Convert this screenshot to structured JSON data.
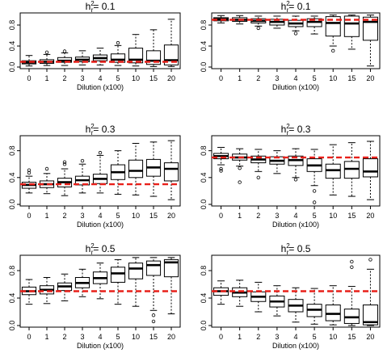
{
  "chart_data": [
    {
      "type": "box",
      "title": "h²r = 0.1",
      "title_main": "h",
      "title_sup": "2",
      "title_sub": "r",
      "title_rest": "= 0.1",
      "xlabel": "Dilution (x100)",
      "ylabel": "",
      "categories": [
        "0",
        "1",
        "2",
        "3",
        "4",
        "5",
        "10",
        "15",
        "20"
      ],
      "ylim": [
        0,
        1
      ],
      "yticks": [
        "0.0",
        "0.4",
        "0.8"
      ],
      "ytick_values": [
        0,
        0.4,
        0.8
      ],
      "reference_line": 0.1,
      "reference_color": "#e8201a",
      "boxes": [
        {
          "whislo": 0.02,
          "q1": 0.06,
          "med": 0.09,
          "q3": 0.12,
          "whishi": 0.22,
          "fliers": []
        },
        {
          "whislo": 0.03,
          "q1": 0.07,
          "med": 0.1,
          "q3": 0.14,
          "whishi": 0.24,
          "fliers": [
            0.28
          ]
        },
        {
          "whislo": 0.03,
          "q1": 0.09,
          "med": 0.12,
          "q3": 0.18,
          "whishi": 0.27,
          "fliers": [
            0.3
          ]
        },
        {
          "whislo": 0.04,
          "q1": 0.1,
          "med": 0.14,
          "q3": 0.19,
          "whishi": 0.31,
          "fliers": []
        },
        {
          "whislo": 0.04,
          "q1": 0.12,
          "med": 0.17,
          "q3": 0.23,
          "whishi": 0.36,
          "fliers": []
        },
        {
          "whislo": 0.03,
          "q1": 0.09,
          "med": 0.14,
          "q3": 0.25,
          "whishi": 0.41,
          "fliers": [
            0.46
          ]
        },
        {
          "whislo": 0.02,
          "q1": 0.08,
          "med": 0.14,
          "q3": 0.36,
          "whishi": 0.62,
          "fliers": []
        },
        {
          "whislo": 0.01,
          "q1": 0.05,
          "med": 0.12,
          "q3": 0.31,
          "whishi": 0.71,
          "fliers": []
        },
        {
          "whislo": 0.01,
          "q1": 0.04,
          "med": 0.13,
          "q3": 0.42,
          "whishi": 0.91,
          "fliers": []
        }
      ]
    },
    {
      "type": "box",
      "title": "h²r = 0.1",
      "title_main": "h",
      "title_sup": "2",
      "title_sub": "r",
      "title_rest": "= 0.1",
      "xlabel": "Dilution (x100)",
      "ylabel": "",
      "categories": [
        "0",
        "1",
        "2",
        "3",
        "4",
        "5",
        "10",
        "15",
        "20"
      ],
      "ylim": [
        0,
        1
      ],
      "yticks": [
        "0.0",
        "0.4",
        "0.8"
      ],
      "ytick_values": [
        0,
        0.4,
        0.8
      ],
      "reference_line": 0.9,
      "reference_color": "#e8201a",
      "boxes": [
        {
          "whislo": 0.84,
          "q1": 0.88,
          "med": 0.91,
          "q3": 0.94,
          "whishi": 0.98,
          "fliers": []
        },
        {
          "whislo": 0.82,
          "q1": 0.87,
          "med": 0.9,
          "q3": 0.94,
          "whishi": 0.98,
          "fliers": []
        },
        {
          "whislo": 0.78,
          "q1": 0.84,
          "med": 0.88,
          "q3": 0.92,
          "whishi": 0.97,
          "fliers": [
            0.74
          ]
        },
        {
          "whislo": 0.74,
          "q1": 0.8,
          "med": 0.86,
          "q3": 0.91,
          "whishi": 0.97,
          "fliers": []
        },
        {
          "whislo": 0.69,
          "q1": 0.77,
          "med": 0.83,
          "q3": 0.89,
          "whishi": 0.97,
          "fliers": [
            0.64
          ]
        },
        {
          "whislo": 0.63,
          "q1": 0.77,
          "med": 0.86,
          "q3": 0.92,
          "whishi": 0.97,
          "fliers": []
        },
        {
          "whislo": 0.4,
          "q1": 0.59,
          "med": 0.84,
          "q3": 0.96,
          "whishi": 0.99,
          "fliers": [
            0.31
          ]
        },
        {
          "whislo": 0.34,
          "q1": 0.58,
          "med": 0.83,
          "q3": 0.97,
          "whishi": 0.99,
          "fliers": []
        },
        {
          "whislo": 0.02,
          "q1": 0.51,
          "med": 0.86,
          "q3": 0.95,
          "whishi": 0.99,
          "fliers": []
        }
      ]
    },
    {
      "type": "box",
      "title": "h²r = 0.3",
      "title_main": "h",
      "title_sup": "2",
      "title_sub": "r",
      "title_rest": "= 0.3",
      "xlabel": "Dilution (x100)",
      "ylabel": "",
      "categories": [
        "0",
        "1",
        "2",
        "3",
        "4",
        "5",
        "10",
        "15",
        "20"
      ],
      "ylim": [
        0,
        1
      ],
      "yticks": [
        "0.0",
        "0.4",
        "0.8"
      ],
      "ytick_values": [
        0,
        0.4,
        0.8
      ],
      "reference_line": 0.3,
      "reference_color": "#e8201a",
      "boxes": [
        {
          "whislo": 0.17,
          "q1": 0.24,
          "med": 0.29,
          "q3": 0.33,
          "whishi": 0.42,
          "fliers": [
            0.47,
            0.51
          ]
        },
        {
          "whislo": 0.16,
          "q1": 0.25,
          "med": 0.3,
          "q3": 0.35,
          "whishi": 0.46,
          "fliers": [
            0.53
          ]
        },
        {
          "whislo": 0.13,
          "q1": 0.26,
          "med": 0.33,
          "q3": 0.39,
          "whishi": 0.53,
          "fliers": [
            0.6,
            0.63
          ]
        },
        {
          "whislo": 0.17,
          "q1": 0.29,
          "med": 0.36,
          "q3": 0.42,
          "whishi": 0.6,
          "fliers": [
            0.65
          ]
        },
        {
          "whislo": 0.17,
          "q1": 0.31,
          "med": 0.38,
          "q3": 0.45,
          "whishi": 0.73,
          "fliers": [
            0.77
          ]
        },
        {
          "whislo": 0.15,
          "q1": 0.37,
          "med": 0.48,
          "q3": 0.59,
          "whishi": 0.8,
          "fliers": []
        },
        {
          "whislo": 0.14,
          "q1": 0.4,
          "med": 0.5,
          "q3": 0.66,
          "whishi": 0.91,
          "fliers": []
        },
        {
          "whislo": 0.12,
          "q1": 0.42,
          "med": 0.55,
          "q3": 0.67,
          "whishi": 0.93,
          "fliers": []
        },
        {
          "whislo": 0.07,
          "q1": 0.35,
          "med": 0.53,
          "q3": 0.62,
          "whishi": 0.95,
          "fliers": []
        }
      ]
    },
    {
      "type": "box",
      "title": "h²r = 0.3",
      "title_main": "h",
      "title_sup": "2",
      "title_sub": "r",
      "title_rest": "= 0.3",
      "xlabel": "Dilution (x100)",
      "ylabel": "",
      "categories": [
        "0",
        "1",
        "2",
        "3",
        "4",
        "5",
        "10",
        "15",
        "20"
      ],
      "ylim": [
        0,
        1
      ],
      "yticks": [
        "0.0",
        "0.4",
        "0.8"
      ],
      "ytick_values": [
        0,
        0.4,
        0.8
      ],
      "reference_line": 0.7,
      "reference_color": "#e8201a",
      "boxes": [
        {
          "whislo": 0.59,
          "q1": 0.68,
          "med": 0.72,
          "q3": 0.76,
          "whishi": 0.85,
          "fliers": [
            0.53,
            0.5
          ]
        },
        {
          "whislo": 0.57,
          "q1": 0.66,
          "med": 0.7,
          "q3": 0.75,
          "whishi": 0.83,
          "fliers": [
            0.33,
            0.54
          ]
        },
        {
          "whislo": 0.49,
          "q1": 0.62,
          "med": 0.67,
          "q3": 0.72,
          "whishi": 0.82,
          "fliers": [
            0.4
          ]
        },
        {
          "whislo": 0.46,
          "q1": 0.6,
          "med": 0.65,
          "q3": 0.71,
          "whishi": 0.8,
          "fliers": []
        },
        {
          "whislo": 0.4,
          "q1": 0.58,
          "med": 0.66,
          "q3": 0.72,
          "whishi": 0.83,
          "fliers": [
            0.37
          ]
        },
        {
          "whislo": 0.28,
          "q1": 0.49,
          "med": 0.58,
          "q3": 0.68,
          "whishi": 0.82,
          "fliers": [
            0.2,
            0.03
          ]
        },
        {
          "whislo": 0.14,
          "q1": 0.39,
          "med": 0.51,
          "q3": 0.6,
          "whishi": 0.89,
          "fliers": []
        },
        {
          "whislo": 0.12,
          "q1": 0.39,
          "med": 0.53,
          "q3": 0.64,
          "whishi": 0.92,
          "fliers": []
        },
        {
          "whislo": 0.07,
          "q1": 0.41,
          "med": 0.49,
          "q3": 0.68,
          "whishi": 0.94,
          "fliers": []
        }
      ]
    },
    {
      "type": "box",
      "title": "h²r = 0.5",
      "title_main": "h",
      "title_sup": "2",
      "title_sub": "r",
      "title_rest": "= 0.5",
      "xlabel": "Dilution (x100)",
      "ylabel": "",
      "categories": [
        "0",
        "1",
        "2",
        "3",
        "4",
        "5",
        "10",
        "15",
        "20"
      ],
      "ylim": [
        0,
        1
      ],
      "yticks": [
        "0.0",
        "0.4",
        "0.8"
      ],
      "ytick_values": [
        0,
        0.4,
        0.8
      ],
      "reference_line": 0.5,
      "reference_color": "#e8201a",
      "boxes": [
        {
          "whislo": 0.31,
          "q1": 0.45,
          "med": 0.5,
          "q3": 0.56,
          "whishi": 0.67,
          "fliers": []
        },
        {
          "whislo": 0.32,
          "q1": 0.46,
          "med": 0.52,
          "q3": 0.58,
          "whishi": 0.7,
          "fliers": []
        },
        {
          "whislo": 0.36,
          "q1": 0.51,
          "med": 0.57,
          "q3": 0.62,
          "whishi": 0.75,
          "fliers": []
        },
        {
          "whislo": 0.42,
          "q1": 0.55,
          "med": 0.62,
          "q3": 0.7,
          "whishi": 0.82,
          "fliers": []
        },
        {
          "whislo": 0.39,
          "q1": 0.61,
          "med": 0.69,
          "q3": 0.78,
          "whishi": 0.91,
          "fliers": []
        },
        {
          "whislo": 0.31,
          "q1": 0.63,
          "med": 0.76,
          "q3": 0.85,
          "whishi": 0.96,
          "fliers": []
        },
        {
          "whislo": 0.28,
          "q1": 0.68,
          "med": 0.83,
          "q3": 0.91,
          "whishi": 0.99,
          "fliers": []
        },
        {
          "whislo": 0.22,
          "q1": 0.73,
          "med": 0.88,
          "q3": 0.94,
          "whishi": 0.99,
          "fliers": [
            0.15,
            0.06
          ]
        },
        {
          "whislo": 0.17,
          "q1": 0.71,
          "med": 0.92,
          "q3": 0.96,
          "whishi": 0.99,
          "fliers": []
        }
      ]
    },
    {
      "type": "box",
      "title": "h²r = 0.5",
      "title_main": "h",
      "title_sup": "2",
      "title_sub": "r",
      "title_rest": "= 0.5",
      "xlabel": "Dilution (x100)",
      "ylabel": "",
      "categories": [
        "0",
        "1",
        "2",
        "3",
        "4",
        "5",
        "10",
        "15",
        "20"
      ],
      "ylim": [
        0,
        1
      ],
      "yticks": [
        "0.0",
        "0.4",
        "0.8"
      ],
      "ytick_values": [
        0,
        0.4,
        0.8
      ],
      "reference_line": 0.5,
      "reference_color": "#e8201a",
      "boxes": [
        {
          "whislo": 0.31,
          "q1": 0.44,
          "med": 0.5,
          "q3": 0.55,
          "whishi": 0.65,
          "fliers": []
        },
        {
          "whislo": 0.28,
          "q1": 0.42,
          "med": 0.48,
          "q3": 0.55,
          "whishi": 0.66,
          "fliers": []
        },
        {
          "whislo": 0.2,
          "q1": 0.35,
          "med": 0.42,
          "q3": 0.49,
          "whishi": 0.63,
          "fliers": []
        },
        {
          "whislo": 0.14,
          "q1": 0.27,
          "med": 0.35,
          "q3": 0.43,
          "whishi": 0.58,
          "fliers": []
        },
        {
          "whislo": 0.05,
          "q1": 0.2,
          "med": 0.29,
          "q3": 0.38,
          "whishi": 0.55,
          "fliers": []
        },
        {
          "whislo": 0.02,
          "q1": 0.13,
          "med": 0.23,
          "q3": 0.31,
          "whishi": 0.54,
          "fliers": []
        },
        {
          "whislo": 0.01,
          "q1": 0.07,
          "med": 0.17,
          "q3": 0.3,
          "whishi": 0.58,
          "fliers": []
        },
        {
          "whislo": 0.0,
          "q1": 0.03,
          "med": 0.12,
          "q3": 0.24,
          "whishi": 0.57,
          "fliers": [
            0.85,
            0.93
          ]
        },
        {
          "whislo": 0.0,
          "q1": 0.01,
          "med": 0.05,
          "q3": 0.3,
          "whishi": 0.82,
          "fliers": [
            0.96
          ]
        }
      ]
    }
  ]
}
